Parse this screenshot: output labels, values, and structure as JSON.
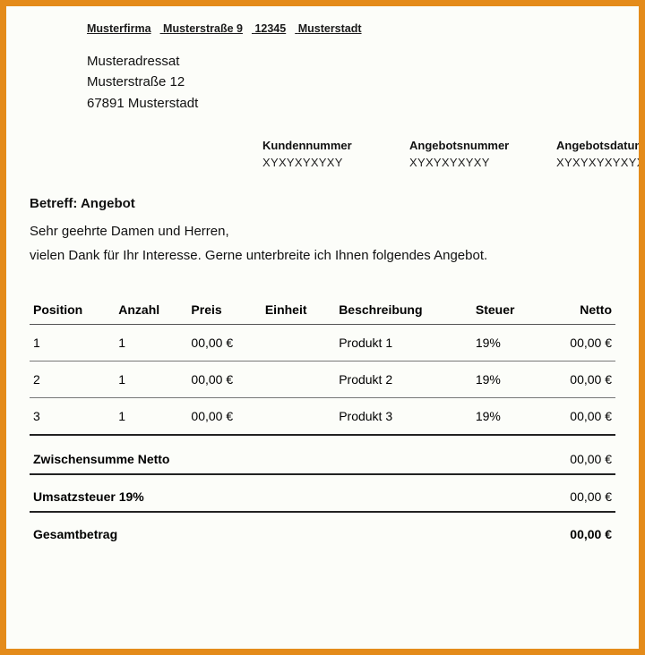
{
  "colors": {
    "frame_border": "#e48b1a",
    "background": "#fcfdf9",
    "text": "#111111",
    "rule": "#555555",
    "rule_heavy": "#222222"
  },
  "sender": {
    "company": "Musterfirma",
    "street": "Musterstraße 9",
    "zip": "12345",
    "city": "Musterstadt"
  },
  "recipient": {
    "name": "Musteradressat",
    "street": "Musterstraße 12",
    "city_line": "67891 Musterstadt"
  },
  "meta": {
    "customer_label": "Kundennummer",
    "customer_value": "XYXYXYXYXY",
    "offer_label": "Angebotsnummer",
    "offer_value": "XYXYXYXYXY",
    "date_label": "Angebotsdatum",
    "date_value": "XYXYXYXYXYXY"
  },
  "subject": "Betreff: Angebot",
  "salutation": "Sehr geehrte Damen und Herren,",
  "intro": "vielen Dank für Ihr Interesse. Gerne unterbreite ich Ihnen folgendes Angebot.",
  "table": {
    "columns": [
      "Position",
      "Anzahl",
      "Preis",
      "Einheit",
      "Beschreibung",
      "Steuer",
      "Netto"
    ],
    "col_align": [
      "left",
      "left",
      "left",
      "left",
      "left",
      "left",
      "right"
    ],
    "rows": [
      {
        "position": "1",
        "anzahl": "1",
        "preis": "00,00 €",
        "einheit": "",
        "beschreibung": "Produkt 1",
        "steuer": "19%",
        "netto": "00,00 €"
      },
      {
        "position": "2",
        "anzahl": "1",
        "preis": "00,00 €",
        "einheit": "",
        "beschreibung": "Produkt 2",
        "steuer": "19%",
        "netto": "00,00 €"
      },
      {
        "position": "3",
        "anzahl": "1",
        "preis": "00,00 €",
        "einheit": "",
        "beschreibung": "Produkt 3",
        "steuer": "19%",
        "netto": "00,00 €"
      }
    ]
  },
  "totals": {
    "subtotal_label": "Zwischensumme Netto",
    "subtotal_value": "00,00 €",
    "tax_label": "Umsatzsteuer 19%",
    "tax_value": "00,00 €",
    "grand_label": "Gesamtbetrag",
    "grand_value": "00,00 €"
  }
}
